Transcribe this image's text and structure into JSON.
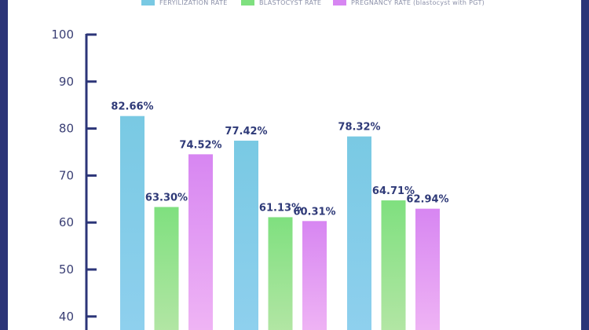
{
  "chart_data": {
    "type": "bar",
    "categories": [
      "",
      "",
      ""
    ],
    "series": [
      {
        "name": "FERYILIZATION RATE",
        "values": [
          82.66,
          77.42,
          78.32
        ],
        "labels": [
          "82.66%",
          "77.42%",
          "78.32%"
        ],
        "color": "#79c9e3"
      },
      {
        "name": "BLASTOCYST RATE",
        "values": [
          63.3,
          61.13,
          64.71
        ],
        "labels": [
          "63.30%",
          "61.13%",
          "64.71%"
        ],
        "color": "#7fe07f"
      },
      {
        "name": "PREGNANCY RATE (blastocyst with PGT)",
        "values": [
          74.52,
          60.31,
          62.94
        ],
        "labels": [
          "74.52%",
          "60.31%",
          "62.94%"
        ],
        "color": "#d786f2"
      }
    ],
    "yticks": [
      "100",
      "90",
      "80",
      "70",
      "60",
      "50",
      "40"
    ],
    "ylim": [
      40,
      100
    ],
    "legend_position": "top",
    "grid": false
  },
  "colors": {
    "frame": "#2c3578",
    "axis": "#2c3578",
    "label": "#2f3a78"
  }
}
